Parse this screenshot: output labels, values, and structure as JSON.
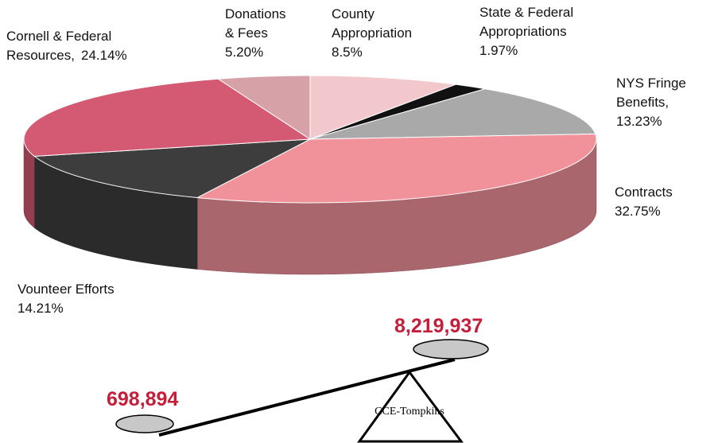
{
  "chart_data": {
    "type": "pie3d",
    "categories": [
      "County Appropriation",
      "State & Federal Appropriations",
      "NYS Fringe Benefits,",
      "Contracts",
      "Vounteer Efforts",
      "Cornell & Federal Resources,",
      "Donations & Fees"
    ],
    "values": [
      8.5,
      1.97,
      13.23,
      32.75,
      14.21,
      24.14,
      5.2
    ],
    "value_labels": [
      "8.5%",
      "1.97%",
      "13.23%",
      "32.75%",
      "14.21%",
      "24.14%",
      "5.20%"
    ],
    "colors": [
      "#f3c8cd",
      "#111111",
      "#a9a9a9",
      "#f1929b",
      "#3d3d3d",
      "#d35a72",
      "#d6a2a8"
    ]
  },
  "scale": {
    "right_amount": "8,219,937",
    "left_amount": "698,894",
    "fulcrum_label": "CCE-Tompkins"
  }
}
